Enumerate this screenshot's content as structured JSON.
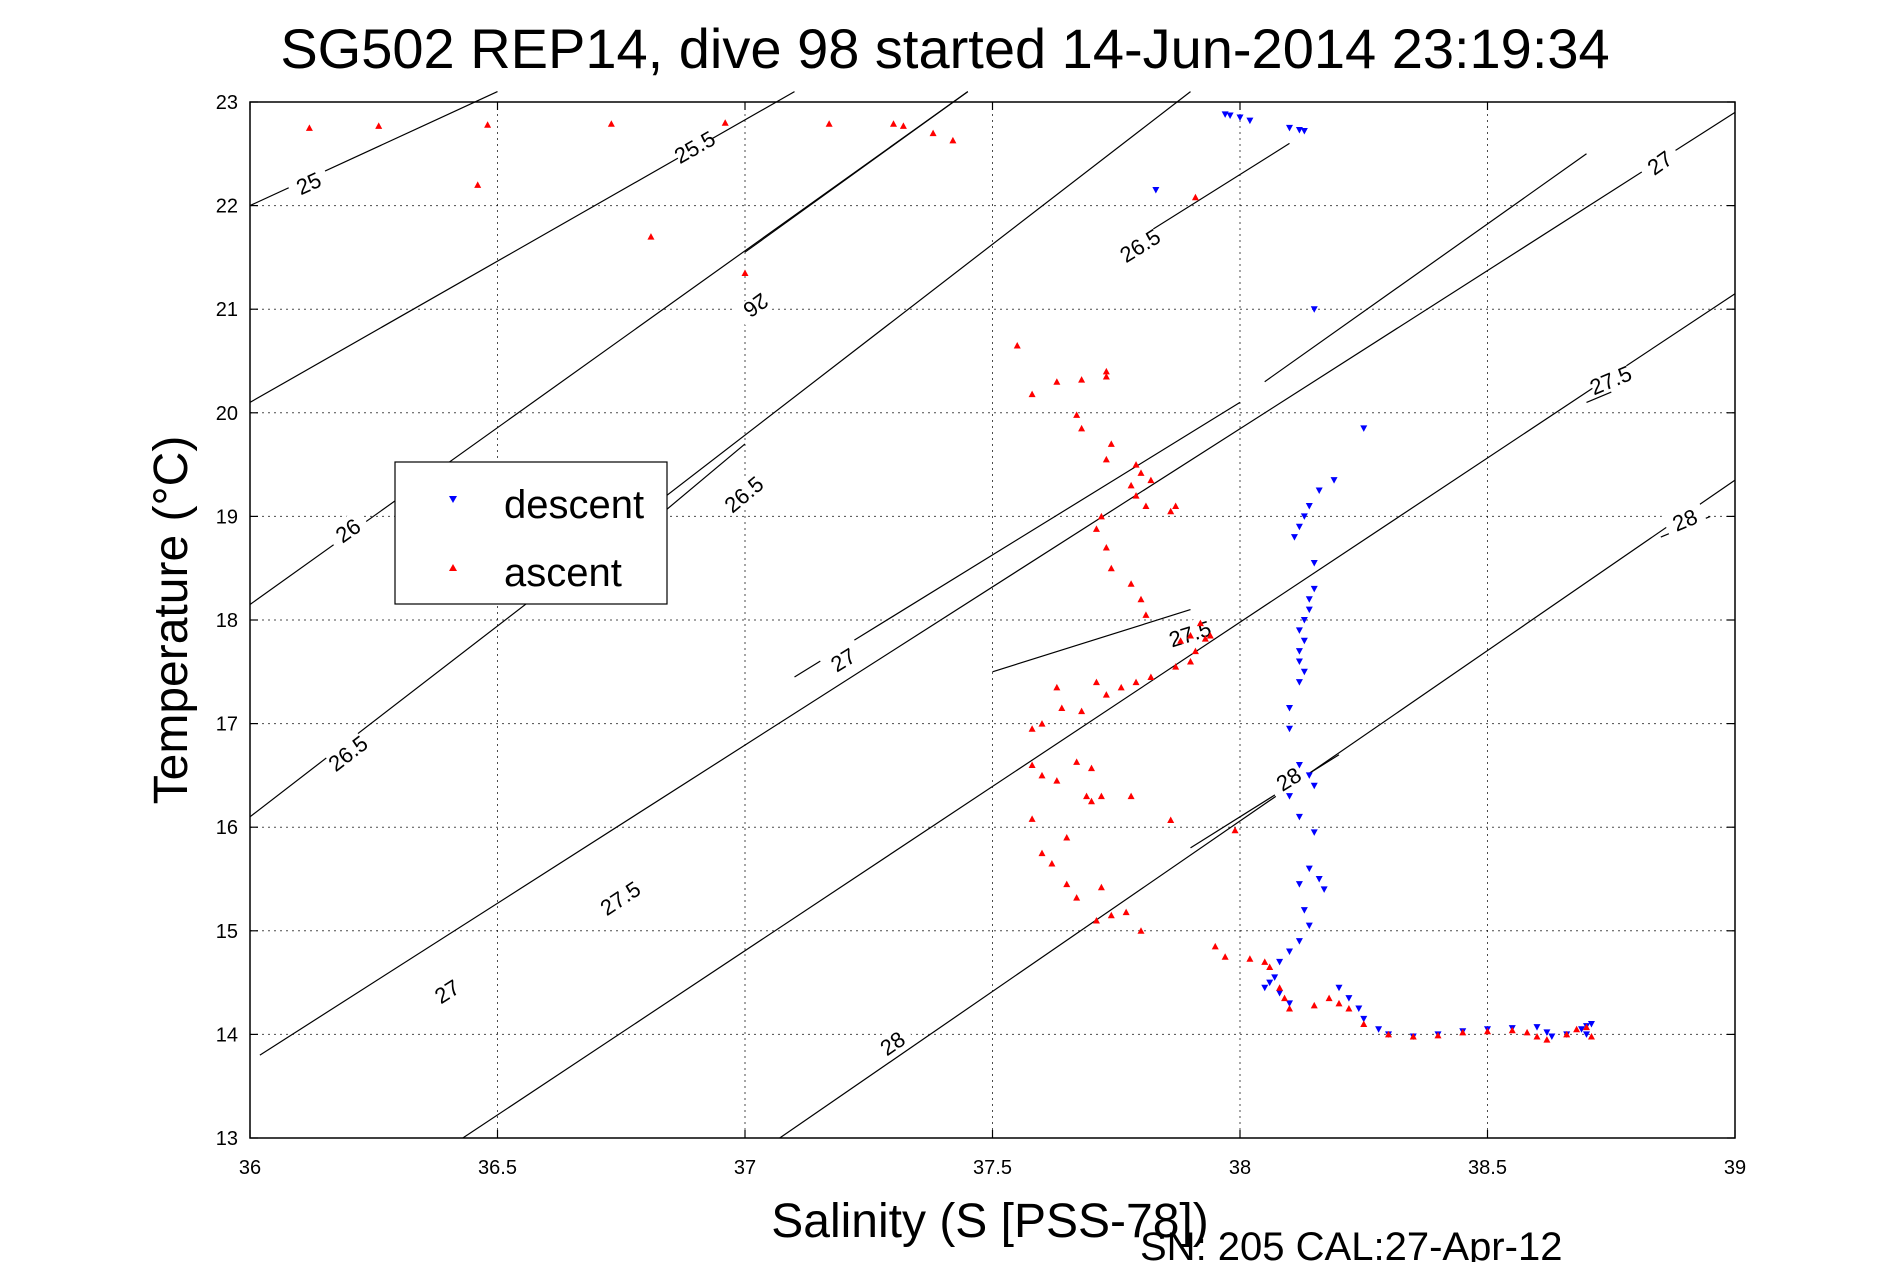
{
  "chart_data": {
    "type": "scatter",
    "title": "SG502 REP14, dive 98 started 14-Jun-2014 23:19:34",
    "xlabel": "Salinity (S [PSS-78])",
    "ylabel": "Temperature (°C)",
    "xlim": [
      36,
      39
    ],
    "ylim": [
      13,
      23
    ],
    "xticks": [
      "36",
      "36.5",
      "37",
      "37.5",
      "38",
      "38.5",
      "39"
    ],
    "yticks": [
      "13",
      "14",
      "15",
      "16",
      "17",
      "18",
      "19",
      "20",
      "21",
      "22",
      "23"
    ],
    "grid": true,
    "legend_position": "left",
    "footer": "SN: 205  CAL:27-Apr-12",
    "isopycnals": [
      {
        "sigma": 25,
        "label": "25",
        "points": [
          [
            36.0,
            22.0
          ],
          [
            36.5,
            23.1
          ]
        ],
        "label_at": [
          36.12,
          22.2
        ]
      },
      {
        "sigma": 25.5,
        "label": "25.5",
        "points": [
          [
            36.0,
            20.1
          ],
          [
            37.1,
            23.1
          ]
        ],
        "label_at": [
          36.9,
          22.55
        ]
      },
      {
        "sigma": 26,
        "label": "26",
        "points": [
          [
            36.0,
            18.15
          ],
          [
            37.45,
            23.1
          ]
        ],
        "label_at": [
          36.2,
          18.85
        ]
      },
      {
        "sigma": 26,
        "label": "26",
        "points": [
          [
            37.45,
            23.1
          ],
          [
            37.0,
            21.55
          ]
        ],
        "label_at": [
          37.02,
          21.05
        ]
      },
      {
        "sigma": 26.5,
        "label": "26.5",
        "points": [
          [
            36.0,
            16.1
          ],
          [
            37.9,
            23.1
          ]
        ],
        "label_at": [
          36.2,
          16.7
        ]
      },
      {
        "sigma": 26.5,
        "label": "26.5",
        "points": [
          [
            36.8,
            18.9
          ],
          [
            37.0,
            19.7
          ]
        ],
        "label_at": [
          37.0,
          19.2
        ]
      },
      {
        "sigma": 26.5,
        "label": "26.5",
        "points": [
          [
            37.8,
            21.7
          ],
          [
            38.1,
            22.6
          ]
        ],
        "label_at": [
          37.8,
          21.6
        ]
      },
      {
        "sigma": 27,
        "label": "27",
        "points": [
          [
            36.02,
            13.8
          ],
          [
            39.0,
            22.9
          ]
        ],
        "label_at": [
          36.4,
          14.4
        ]
      },
      {
        "sigma": 27,
        "label": "27",
        "points": [
          [
            37.1,
            17.45
          ],
          [
            38.0,
            20.1
          ]
        ],
        "label_at": [
          37.2,
          17.6
        ]
      },
      {
        "sigma": 27,
        "label": "27",
        "points": [
          [
            38.05,
            20.3
          ],
          [
            38.7,
            22.5
          ]
        ],
        "label_at": [
          38.85,
          22.4
        ]
      },
      {
        "sigma": 27.5,
        "label": "27.5",
        "points": [
          [
            36.43,
            13.0
          ],
          [
            39.0,
            21.15
          ]
        ],
        "label_at": [
          36.75,
          15.3
        ]
      },
      {
        "sigma": 27.5,
        "label": "27.5",
        "points": [
          [
            37.5,
            17.5
          ],
          [
            37.9,
            18.1
          ]
        ],
        "label_at": [
          37.9,
          17.85
        ]
      },
      {
        "sigma": 27.5,
        "label": "27.5",
        "points": [
          [
            38.7,
            20.1
          ],
          [
            38.75,
            20.2
          ]
        ],
        "label_at": [
          38.75,
          20.3
        ]
      },
      {
        "sigma": 28,
        "label": "28",
        "points": [
          [
            37.07,
            13.0
          ],
          [
            39.0,
            19.35
          ]
        ],
        "label_at": [
          37.3,
          13.9
        ]
      },
      {
        "sigma": 28,
        "label": "28",
        "points": [
          [
            37.9,
            15.8
          ],
          [
            38.2,
            16.7
          ]
        ],
        "label_at": [
          38.1,
          16.45
        ]
      },
      {
        "sigma": 28,
        "label": "28",
        "points": [
          [
            38.85,
            18.8
          ],
          [
            38.95,
            19.0
          ]
        ],
        "label_at": [
          38.9,
          18.95
        ]
      }
    ],
    "series": [
      {
        "name": "descent",
        "color": "#0000ff",
        "marker": "triangle-down",
        "points": [
          [
            37.97,
            22.88
          ],
          [
            37.98,
            22.87
          ],
          [
            38.0,
            22.85
          ],
          [
            38.02,
            22.82
          ],
          [
            38.1,
            22.75
          ],
          [
            38.12,
            22.73
          ],
          [
            38.13,
            22.72
          ],
          [
            37.83,
            22.15
          ],
          [
            38.15,
            21.0
          ],
          [
            38.25,
            19.85
          ],
          [
            38.19,
            19.35
          ],
          [
            38.16,
            19.25
          ],
          [
            38.14,
            19.1
          ],
          [
            38.13,
            19.0
          ],
          [
            38.12,
            18.9
          ],
          [
            38.11,
            18.8
          ],
          [
            38.15,
            18.55
          ],
          [
            38.15,
            18.3
          ],
          [
            38.14,
            18.2
          ],
          [
            38.14,
            18.1
          ],
          [
            38.13,
            18.0
          ],
          [
            38.12,
            17.9
          ],
          [
            38.13,
            17.8
          ],
          [
            38.12,
            17.7
          ],
          [
            38.12,
            17.6
          ],
          [
            38.13,
            17.5
          ],
          [
            38.12,
            17.4
          ],
          [
            38.1,
            17.15
          ],
          [
            38.1,
            16.95
          ],
          [
            38.12,
            16.6
          ],
          [
            38.14,
            16.5
          ],
          [
            38.15,
            16.4
          ],
          [
            38.1,
            16.3
          ],
          [
            38.12,
            16.1
          ],
          [
            38.15,
            15.95
          ],
          [
            38.14,
            15.6
          ],
          [
            38.16,
            15.5
          ],
          [
            38.17,
            15.4
          ],
          [
            38.12,
            15.45
          ],
          [
            38.13,
            15.2
          ],
          [
            38.14,
            15.05
          ],
          [
            38.12,
            14.9
          ],
          [
            38.1,
            14.8
          ],
          [
            38.08,
            14.7
          ],
          [
            38.07,
            14.55
          ],
          [
            38.06,
            14.5
          ],
          [
            38.05,
            14.45
          ],
          [
            38.08,
            14.4
          ],
          [
            38.1,
            14.3
          ],
          [
            38.2,
            14.45
          ],
          [
            38.22,
            14.35
          ],
          [
            38.24,
            14.25
          ],
          [
            38.25,
            14.15
          ],
          [
            38.28,
            14.05
          ],
          [
            38.3,
            14.0
          ],
          [
            38.35,
            13.98
          ],
          [
            38.4,
            14.0
          ],
          [
            38.45,
            14.03
          ],
          [
            38.5,
            14.05
          ],
          [
            38.55,
            14.06
          ],
          [
            38.6,
            14.07
          ],
          [
            38.62,
            14.02
          ],
          [
            38.63,
            13.98
          ],
          [
            38.66,
            14.0
          ],
          [
            38.69,
            14.05
          ],
          [
            38.7,
            14.08
          ],
          [
            38.71,
            14.1
          ],
          [
            38.7,
            14.0
          ]
        ]
      },
      {
        "name": "ascent",
        "color": "#ff0000",
        "marker": "triangle-up",
        "points": [
          [
            36.12,
            22.75
          ],
          [
            36.26,
            22.77
          ],
          [
            36.48,
            22.78
          ],
          [
            36.73,
            22.79
          ],
          [
            36.96,
            22.8
          ],
          [
            37.17,
            22.79
          ],
          [
            37.3,
            22.79
          ],
          [
            37.32,
            22.77
          ],
          [
            37.38,
            22.7
          ],
          [
            37.42,
            22.63
          ],
          [
            36.46,
            22.2
          ],
          [
            36.81,
            21.7
          ],
          [
            37.91,
            22.08
          ],
          [
            37.0,
            21.35
          ],
          [
            37.55,
            20.65
          ],
          [
            37.58,
            20.18
          ],
          [
            37.63,
            20.3
          ],
          [
            37.68,
            20.32
          ],
          [
            37.73,
            20.4
          ],
          [
            37.73,
            20.35
          ],
          [
            37.67,
            19.98
          ],
          [
            37.68,
            19.85
          ],
          [
            37.74,
            19.7
          ],
          [
            37.73,
            19.55
          ],
          [
            37.79,
            19.5
          ],
          [
            37.8,
            19.42
          ],
          [
            37.82,
            19.35
          ],
          [
            37.78,
            19.3
          ],
          [
            37.79,
            19.2
          ],
          [
            37.81,
            19.1
          ],
          [
            37.87,
            19.1
          ],
          [
            37.86,
            19.05
          ],
          [
            37.72,
            19.0
          ],
          [
            37.71,
            18.88
          ],
          [
            37.73,
            18.7
          ],
          [
            37.74,
            18.5
          ],
          [
            37.78,
            18.35
          ],
          [
            37.8,
            18.2
          ],
          [
            37.81,
            18.05
          ],
          [
            37.92,
            17.97
          ],
          [
            37.9,
            17.85
          ],
          [
            37.88,
            17.8
          ],
          [
            37.93,
            17.82
          ],
          [
            37.94,
            17.85
          ],
          [
            37.91,
            17.7
          ],
          [
            37.9,
            17.6
          ],
          [
            37.87,
            17.55
          ],
          [
            37.82,
            17.45
          ],
          [
            37.79,
            17.4
          ],
          [
            37.76,
            17.35
          ],
          [
            37.73,
            17.28
          ],
          [
            37.71,
            17.4
          ],
          [
            37.63,
            17.35
          ],
          [
            37.6,
            17.0
          ],
          [
            37.64,
            17.15
          ],
          [
            37.68,
            17.12
          ],
          [
            37.58,
            16.95
          ],
          [
            37.58,
            16.6
          ],
          [
            37.6,
            16.5
          ],
          [
            37.67,
            16.63
          ],
          [
            37.7,
            16.57
          ],
          [
            37.63,
            16.45
          ],
          [
            37.69,
            16.3
          ],
          [
            37.7,
            16.25
          ],
          [
            37.72,
            16.3
          ],
          [
            37.78,
            16.3
          ],
          [
            37.86,
            16.07
          ],
          [
            37.99,
            15.97
          ],
          [
            37.58,
            16.08
          ],
          [
            37.65,
            15.9
          ],
          [
            37.6,
            15.75
          ],
          [
            37.62,
            15.65
          ],
          [
            37.65,
            15.45
          ],
          [
            37.72,
            15.42
          ],
          [
            37.67,
            15.32
          ],
          [
            37.71,
            15.1
          ],
          [
            37.74,
            15.15
          ],
          [
            37.77,
            15.18
          ],
          [
            37.8,
            15.0
          ],
          [
            37.95,
            14.85
          ],
          [
            37.97,
            14.75
          ],
          [
            38.02,
            14.73
          ],
          [
            38.05,
            14.7
          ],
          [
            38.06,
            14.65
          ],
          [
            38.08,
            14.45
          ],
          [
            38.09,
            14.35
          ],
          [
            38.1,
            14.25
          ],
          [
            38.15,
            14.28
          ],
          [
            38.18,
            14.35
          ],
          [
            38.2,
            14.3
          ],
          [
            38.22,
            14.25
          ],
          [
            38.25,
            14.1
          ],
          [
            38.3,
            14.0
          ],
          [
            38.35,
            13.98
          ],
          [
            38.4,
            13.99
          ],
          [
            38.45,
            14.02
          ],
          [
            38.5,
            14.03
          ],
          [
            38.55,
            14.04
          ],
          [
            38.58,
            14.02
          ],
          [
            38.6,
            13.98
          ],
          [
            38.62,
            13.95
          ],
          [
            38.66,
            14.0
          ],
          [
            38.68,
            14.05
          ],
          [
            38.7,
            14.07
          ],
          [
            38.71,
            13.98
          ]
        ]
      }
    ]
  }
}
